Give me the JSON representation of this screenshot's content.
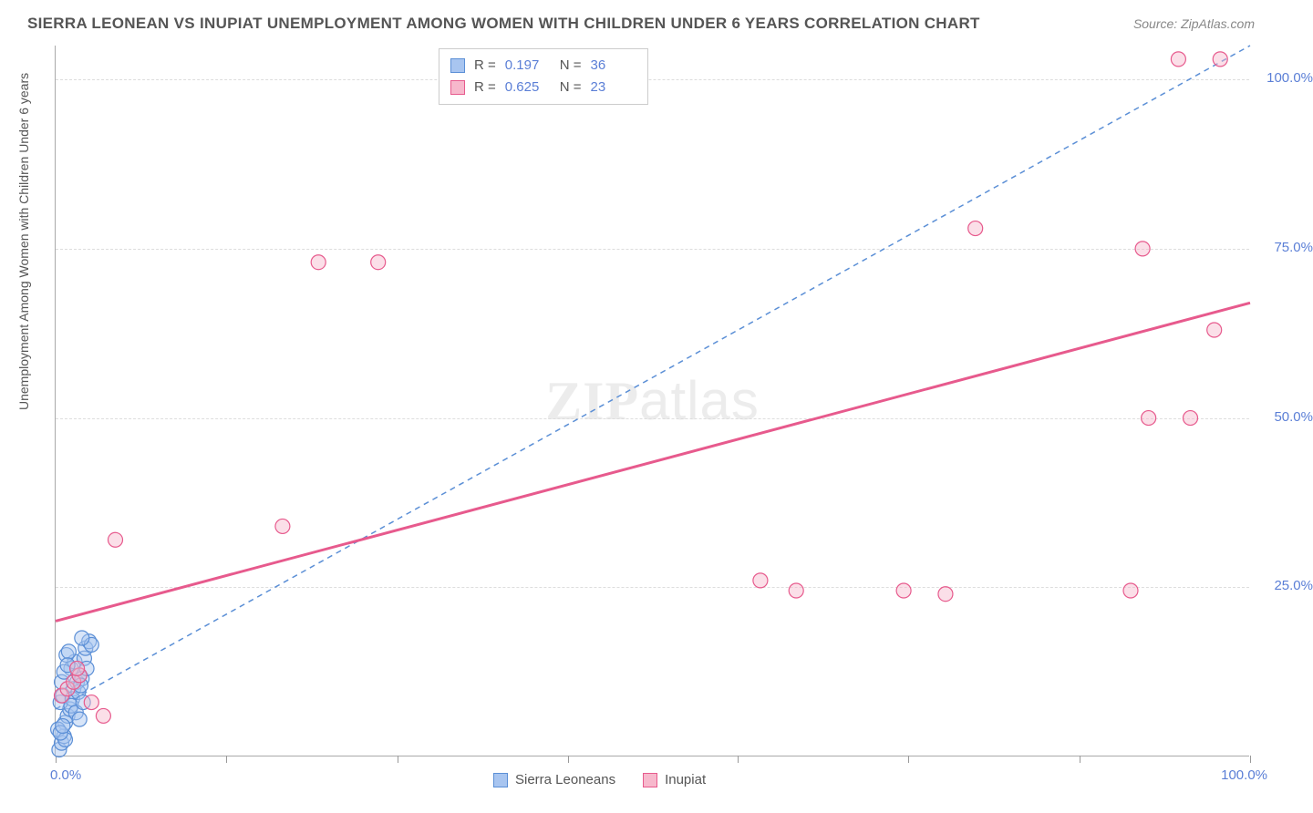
{
  "title": "SIERRA LEONEAN VS INUPIAT UNEMPLOYMENT AMONG WOMEN WITH CHILDREN UNDER 6 YEARS CORRELATION CHART",
  "source": "Source: ZipAtlas.com",
  "yaxis_label": "Unemployment Among Women with Children Under 6 years",
  "watermark": {
    "bold": "ZIP",
    "thin": "atlas"
  },
  "chart": {
    "type": "scatter",
    "xlim": [
      0,
      100
    ],
    "ylim": [
      0,
      105
    ],
    "x_ticks": [
      0,
      14.3,
      28.6,
      42.9,
      57.1,
      71.4,
      85.7,
      100
    ],
    "y_gridlines": [
      25,
      50,
      75,
      100
    ],
    "y_tick_labels": [
      "25.0%",
      "50.0%",
      "75.0%",
      "100.0%"
    ],
    "x_labels": {
      "min": "0.0%",
      "max": "100.0%"
    },
    "marker_radius": 8,
    "series": [
      {
        "name": "Sierra Leoneans",
        "color_fill": "#a8c5f0",
        "color_stroke": "#5b8fd6",
        "fill_opacity": 0.45,
        "R": "0.197",
        "N": "36",
        "trend": {
          "x1": 0,
          "y1": 7,
          "x2": 100,
          "y2": 105,
          "dash": "6,5",
          "width": 1.5,
          "color": "#5b8fd6"
        },
        "points": [
          [
            0.3,
            1
          ],
          [
            0.5,
            2
          ],
          [
            0.7,
            3
          ],
          [
            0.8,
            5
          ],
          [
            1,
            6
          ],
          [
            1.2,
            7
          ],
          [
            0.4,
            8
          ],
          [
            0.6,
            9
          ],
          [
            1.5,
            10
          ],
          [
            1.8,
            11
          ],
          [
            2,
            12
          ],
          [
            2.2,
            11.5
          ],
          [
            1.3,
            13
          ],
          [
            1.6,
            14
          ],
          [
            0.9,
            15
          ],
          [
            1.1,
            15.5
          ],
          [
            2.4,
            14.5
          ],
          [
            2.6,
            13
          ],
          [
            0.2,
            4
          ],
          [
            0.8,
            2.5
          ],
          [
            1.4,
            8.5
          ],
          [
            1.9,
            9.5
          ],
          [
            2.1,
            10.5
          ],
          [
            0.5,
            11
          ],
          [
            0.7,
            12.5
          ],
          [
            1.0,
            13.5
          ],
          [
            1.3,
            7.5
          ],
          [
            1.7,
            6.5
          ],
          [
            2.0,
            5.5
          ],
          [
            2.3,
            8
          ],
          [
            0.4,
            3.5
          ],
          [
            0.6,
            4.5
          ],
          [
            2.5,
            16
          ],
          [
            2.8,
            17
          ],
          [
            3.0,
            16.5
          ],
          [
            2.2,
            17.5
          ]
        ]
      },
      {
        "name": "Inupiat",
        "color_fill": "#f7b8cc",
        "color_stroke": "#e75a8d",
        "fill_opacity": 0.45,
        "R": "0.625",
        "N": "23",
        "trend": {
          "x1": 0,
          "y1": 20,
          "x2": 100,
          "y2": 67,
          "dash": "none",
          "width": 3,
          "color": "#e75a8d"
        },
        "points": [
          [
            0.5,
            9
          ],
          [
            1,
            10
          ],
          [
            1.5,
            11
          ],
          [
            2,
            12
          ],
          [
            3,
            8
          ],
          [
            4,
            6
          ],
          [
            5,
            32
          ],
          [
            19,
            34
          ],
          [
            22,
            73
          ],
          [
            27,
            73
          ],
          [
            59,
            26
          ],
          [
            62,
            24.5
          ],
          [
            71,
            24.5
          ],
          [
            74.5,
            24
          ],
          [
            77,
            78
          ],
          [
            90,
            24.5
          ],
          [
            91,
            75
          ],
          [
            91.5,
            50
          ],
          [
            94,
            103
          ],
          [
            95,
            50
          ],
          [
            97,
            63
          ],
          [
            97.5,
            103
          ],
          [
            1.8,
            13
          ]
        ]
      }
    ]
  },
  "stats_box": {
    "rows": [
      {
        "swatch_fill": "#a8c5f0",
        "swatch_stroke": "#5b8fd6",
        "R_label": "R =",
        "R_val": "0.197",
        "N_label": "N =",
        "N_val": "36"
      },
      {
        "swatch_fill": "#f7b8cc",
        "swatch_stroke": "#e75a8d",
        "R_label": "R =",
        "R_val": "0.625",
        "N_label": "N =",
        "N_val": "23"
      }
    ]
  },
  "legend": [
    {
      "swatch_fill": "#a8c5f0",
      "swatch_stroke": "#5b8fd6",
      "label": "Sierra Leoneans"
    },
    {
      "swatch_fill": "#f7b8cc",
      "swatch_stroke": "#e75a8d",
      "label": "Inupiat"
    }
  ]
}
